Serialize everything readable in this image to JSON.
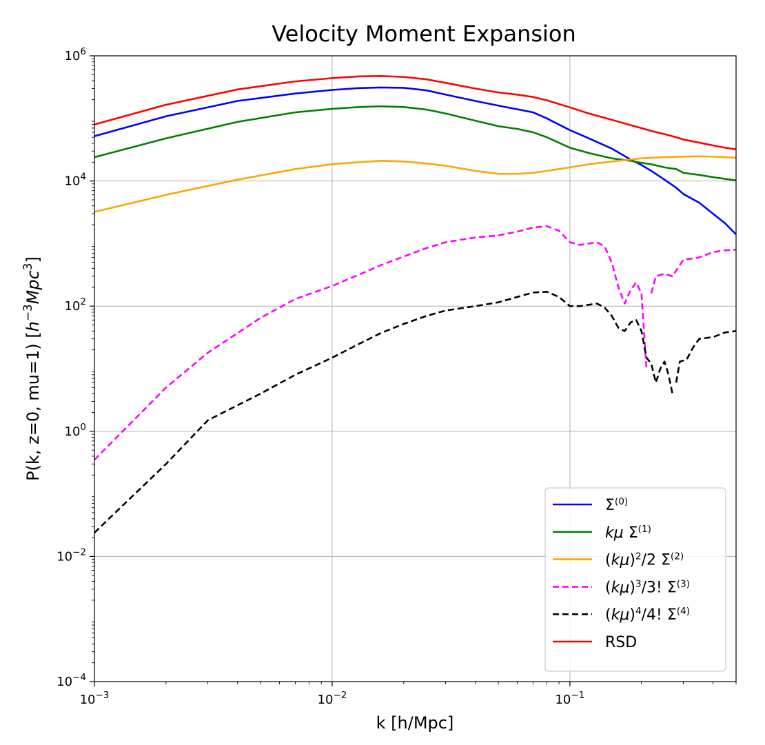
{
  "chart_data": {
    "type": "line",
    "title": "Velocity Moment Expansion",
    "xlabel": "k [h/Mpc]",
    "ylabel_parts": [
      "P(k, z=0, mu=1) [",
      "h",
      "−",
      "3",
      "Mpc",
      "3",
      "]"
    ],
    "xscale": "log",
    "yscale": "log",
    "xlim": [
      0.001,
      0.5
    ],
    "ylim": [
      0.0001,
      1000000
    ],
    "grid": true,
    "legend_position": "lower-right",
    "x_ticks": [
      {
        "value": 0.001,
        "base": "10",
        "exp": "−3"
      },
      {
        "value": 0.01,
        "base": "10",
        "exp": "−2"
      },
      {
        "value": 0.1,
        "base": "10",
        "exp": "−1"
      }
    ],
    "y_ticks": [
      {
        "value": 0.0001,
        "base": "10",
        "exp": "−4"
      },
      {
        "value": 0.01,
        "base": "10",
        "exp": "−2"
      },
      {
        "value": 1,
        "base": "10",
        "exp": "0"
      },
      {
        "value": 100,
        "base": "10",
        "exp": "2"
      },
      {
        "value": 10000,
        "base": "10",
        "exp": "4"
      },
      {
        "value": 1000000,
        "base": "10",
        "exp": "6"
      }
    ],
    "series": [
      {
        "name": "Σ(0)",
        "legend": [
          {
            "t": "Σ"
          },
          {
            "t": "(0)",
            "sup": true
          }
        ],
        "color": "#0000ff",
        "dashed": false,
        "segments": [
          [
            [
              0.001,
              52000
            ],
            [
              0.002,
              108000
            ],
            [
              0.004,
              190000
            ],
            [
              0.007,
              250000
            ],
            [
              0.01,
              285000
            ],
            [
              0.013,
              305000
            ],
            [
              0.016,
              312000
            ],
            [
              0.02,
              308000
            ],
            [
              0.025,
              280000
            ],
            [
              0.03,
              240000
            ],
            [
              0.04,
              190000
            ],
            [
              0.05,
              160000
            ],
            [
              0.06,
              140000
            ],
            [
              0.07,
              125000
            ],
            [
              0.08,
              100000
            ],
            [
              0.1,
              65000
            ],
            [
              0.12,
              48000
            ],
            [
              0.15,
              33000
            ],
            [
              0.18,
              22000
            ],
            [
              0.2,
              18000
            ],
            [
              0.22,
              14500
            ],
            [
              0.25,
              10500
            ],
            [
              0.28,
              7800
            ],
            [
              0.3,
              6200
            ],
            [
              0.35,
              4500
            ],
            [
              0.4,
              3000
            ],
            [
              0.45,
              2100
            ],
            [
              0.5,
              1400
            ]
          ]
        ]
      },
      {
        "name": "kμ Σ(1)",
        "legend": [
          {
            "t": "kμ",
            "italic": true
          },
          {
            "t": " Σ"
          },
          {
            "t": "(1)",
            "sup": true
          }
        ],
        "color": "#008000",
        "dashed": false,
        "segments": [
          [
            [
              0.001,
              24000
            ],
            [
              0.002,
              48000
            ],
            [
              0.004,
              88000
            ],
            [
              0.007,
              125000
            ],
            [
              0.01,
              142000
            ],
            [
              0.013,
              152000
            ],
            [
              0.016,
              156000
            ],
            [
              0.02,
              152000
            ],
            [
              0.025,
              138000
            ],
            [
              0.03,
              120000
            ],
            [
              0.04,
              92000
            ],
            [
              0.05,
              75000
            ],
            [
              0.06,
              68000
            ],
            [
              0.07,
              60000
            ],
            [
              0.08,
              50000
            ],
            [
              0.1,
              34000
            ],
            [
              0.12,
              28000
            ],
            [
              0.15,
              23000
            ],
            [
              0.18,
              21000
            ],
            [
              0.2,
              19500
            ],
            [
              0.22,
              18500
            ],
            [
              0.25,
              16500
            ],
            [
              0.28,
              15500
            ],
            [
              0.3,
              13500
            ],
            [
              0.35,
              12500
            ],
            [
              0.4,
              11500
            ],
            [
              0.45,
              10800
            ],
            [
              0.5,
              10200
            ]
          ]
        ]
      },
      {
        "name": "(kμ)2/2 Σ(2)",
        "legend": [
          {
            "t": "("
          },
          {
            "t": "kμ",
            "italic": true
          },
          {
            "t": ")"
          },
          {
            "t": "2",
            "sup": true
          },
          {
            "t": "/2 Σ"
          },
          {
            "t": "(2)",
            "sup": true
          }
        ],
        "color": "#ffa500",
        "dashed": false,
        "segments": [
          [
            [
              0.001,
              3200
            ],
            [
              0.002,
              6000
            ],
            [
              0.004,
              10500
            ],
            [
              0.007,
              15500
            ],
            [
              0.01,
              18500
            ],
            [
              0.013,
              20000
            ],
            [
              0.016,
              21000
            ],
            [
              0.02,
              20500
            ],
            [
              0.025,
              19000
            ],
            [
              0.03,
              17500
            ],
            [
              0.04,
              14500
            ],
            [
              0.05,
              13000
            ],
            [
              0.06,
              13000
            ],
            [
              0.07,
              13500
            ],
            [
              0.08,
              14500
            ],
            [
              0.1,
              16500
            ],
            [
              0.12,
              18500
            ],
            [
              0.15,
              20500
            ],
            [
              0.18,
              22000
            ],
            [
              0.2,
              23000
            ],
            [
              0.22,
              23500
            ],
            [
              0.25,
              24000
            ],
            [
              0.3,
              24500
            ],
            [
              0.35,
              24800
            ],
            [
              0.4,
              24500
            ],
            [
              0.45,
              24000
            ],
            [
              0.5,
              23500
            ]
          ]
        ]
      },
      {
        "name": "(kμ)3/3! Σ(3)",
        "legend": [
          {
            "t": "("
          },
          {
            "t": "kμ",
            "italic": true
          },
          {
            "t": ")"
          },
          {
            "t": "3",
            "sup": true
          },
          {
            "t": "/3!  Σ"
          },
          {
            "t": "(3)",
            "sup": true
          }
        ],
        "color": "#ff00ff",
        "dashed": true,
        "segments": [
          [
            [
              0.001,
              0.35
            ],
            [
              0.002,
              5
            ],
            [
              0.003,
              18
            ],
            [
              0.005,
              65
            ],
            [
              0.007,
              130
            ],
            [
              0.01,
              210
            ],
            [
              0.013,
              320
            ],
            [
              0.016,
              450
            ],
            [
              0.02,
              620
            ],
            [
              0.025,
              850
            ],
            [
              0.03,
              1050
            ],
            [
              0.04,
              1250
            ],
            [
              0.05,
              1350
            ],
            [
              0.06,
              1550
            ],
            [
              0.07,
              1800
            ],
            [
              0.08,
              1900
            ],
            [
              0.09,
              1600
            ],
            [
              0.1,
              1050
            ],
            [
              0.11,
              950
            ],
            [
              0.12,
              1000
            ],
            [
              0.13,
              1050
            ],
            [
              0.14,
              900
            ],
            [
              0.15,
              500
            ],
            [
              0.16,
              200
            ],
            [
              0.17,
              110
            ],
            [
              0.18,
              180
            ],
            [
              0.19,
              240
            ],
            [
              0.2,
              160
            ],
            [
              0.21,
              10
            ]
          ],
          [
            [
              0.22,
              160
            ],
            [
              0.23,
              300
            ],
            [
              0.25,
              330
            ],
            [
              0.27,
              300
            ],
            [
              0.3,
              550
            ],
            [
              0.35,
              600
            ],
            [
              0.4,
              730
            ],
            [
              0.45,
              780
            ],
            [
              0.5,
              800
            ]
          ]
        ]
      },
      {
        "name": "(kμ)4/4! Σ(4)",
        "legend": [
          {
            "t": "("
          },
          {
            "t": "kμ",
            "italic": true
          },
          {
            "t": ")"
          },
          {
            "t": "4",
            "sup": true
          },
          {
            "t": "/4!  Σ"
          },
          {
            "t": "(4)",
            "sup": true
          }
        ],
        "color": "#000000",
        "dashed": true,
        "segments": [
          [
            [
              0.001,
              0.024
            ],
            [
              0.002,
              0.3
            ],
            [
              0.003,
              1.5
            ],
            [
              0.005,
              4
            ],
            [
              0.007,
              8
            ],
            [
              0.01,
              15
            ],
            [
              0.013,
              25
            ],
            [
              0.016,
              37
            ],
            [
              0.02,
              52
            ],
            [
              0.025,
              70
            ],
            [
              0.03,
              85
            ],
            [
              0.04,
              100
            ],
            [
              0.05,
              115
            ],
            [
              0.06,
              140
            ],
            [
              0.07,
              165
            ],
            [
              0.08,
              170
            ],
            [
              0.09,
              140
            ],
            [
              0.1,
              100
            ],
            [
              0.11,
              100
            ],
            [
              0.12,
              105
            ],
            [
              0.13,
              110
            ],
            [
              0.14,
              95
            ],
            [
              0.15,
              70
            ],
            [
              0.16,
              45
            ],
            [
              0.17,
              40
            ],
            [
              0.18,
              55
            ],
            [
              0.19,
              60
            ],
            [
              0.2,
              40
            ],
            [
              0.21,
              15
            ],
            [
              0.22,
              12
            ],
            [
              0.23,
              6
            ],
            [
              0.24,
              10
            ],
            [
              0.25,
              13
            ],
            [
              0.26,
              8
            ],
            [
              0.27,
              4
            ]
          ],
          [
            [
              0.28,
              6
            ],
            [
              0.29,
              13
            ],
            [
              0.31,
              14
            ],
            [
              0.33,
              22
            ],
            [
              0.35,
              30
            ],
            [
              0.4,
              32
            ],
            [
              0.45,
              38
            ],
            [
              0.5,
              40
            ]
          ]
        ]
      },
      {
        "name": "RSD",
        "legend": [
          {
            "t": "RSD"
          }
        ],
        "color": "#ff0000",
        "dashed": false,
        "segments": [
          [
            [
              0.001,
              80000
            ],
            [
              0.002,
              165000
            ],
            [
              0.004,
              290000
            ],
            [
              0.007,
              390000
            ],
            [
              0.01,
              440000
            ],
            [
              0.013,
              470000
            ],
            [
              0.016,
              475000
            ],
            [
              0.02,
              460000
            ],
            [
              0.025,
              420000
            ],
            [
              0.03,
              370000
            ],
            [
              0.04,
              300000
            ],
            [
              0.05,
              260000
            ],
            [
              0.06,
              240000
            ],
            [
              0.07,
              220000
            ],
            [
              0.08,
              195000
            ],
            [
              0.1,
              150000
            ],
            [
              0.12,
              120000
            ],
            [
              0.15,
              95000
            ],
            [
              0.18,
              78000
            ],
            [
              0.2,
              70000
            ],
            [
              0.22,
              63000
            ],
            [
              0.25,
              56000
            ],
            [
              0.28,
              50000
            ],
            [
              0.3,
              46000
            ],
            [
              0.35,
              41000
            ],
            [
              0.4,
              37000
            ],
            [
              0.45,
              34000
            ],
            [
              0.5,
              32000
            ]
          ]
        ]
      }
    ]
  }
}
